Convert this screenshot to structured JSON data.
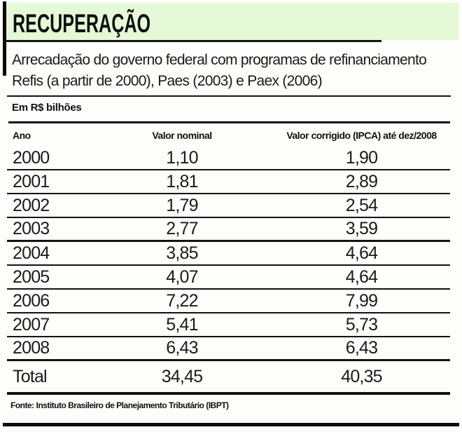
{
  "accent_color": "#e6f9d7",
  "line_color": "#131313",
  "header": {
    "title": "RECUPERAÇÃO"
  },
  "subtitle": "Arrecadação do governo federal com programas de refinanciamento Refis (a partir de 2000), Paes (2003) e Paex (2006)",
  "unit_label": "Em R$ bilhões",
  "table": {
    "columns": [
      "Ano",
      "Valor nominal",
      "Valor corrigido (IPCA) até dez/2008"
    ],
    "rows": [
      {
        "ano": "2000",
        "nominal": "1,10",
        "corrigido": "1,90",
        "divider": "normal"
      },
      {
        "ano": "2001",
        "nominal": "1,81",
        "corrigido": "2,89",
        "divider": "normal"
      },
      {
        "ano": "2002",
        "nominal": "1,79",
        "corrigido": "2,54",
        "divider": "normal"
      },
      {
        "ano": "2003",
        "nominal": "2,77",
        "corrigido": "3,59",
        "divider": "thick"
      },
      {
        "ano": "2004",
        "nominal": "3,85",
        "corrigido": "4,64",
        "divider": "normal"
      },
      {
        "ano": "2005",
        "nominal": "4,07",
        "corrigido": "4,64",
        "divider": "normal"
      },
      {
        "ano": "2006",
        "nominal": "7,22",
        "corrigido": "7,99",
        "divider": "normal"
      },
      {
        "ano": "2007",
        "nominal": "5,41",
        "corrigido": "5,73",
        "divider": "normal"
      },
      {
        "ano": "2008",
        "nominal": "6,43",
        "corrigido": "6,43",
        "divider": "thick"
      },
      {
        "ano": "Total",
        "nominal": "34,45",
        "corrigido": "40,35",
        "divider": "heavy"
      }
    ]
  },
  "source": "Fonte: Instituto Brasileiro de Planejamento Tributário (IBPT)",
  "chart_data": {
    "type": "table",
    "title": "RECUPERAÇÃO",
    "subtitle": "Arrecadação do governo federal com programas de refinanciamento Refis (a partir de 2000), Paes (2003) e Paex (2006)",
    "unit": "Em R$ bilhões",
    "columns": [
      "Ano",
      "Valor nominal",
      "Valor corrigido (IPCA) até dez/2008"
    ],
    "categories": [
      "2000",
      "2001",
      "2002",
      "2003",
      "2004",
      "2005",
      "2006",
      "2007",
      "2008",
      "Total"
    ],
    "series": [
      {
        "name": "Valor nominal",
        "values": [
          1.1,
          1.81,
          1.79,
          2.77,
          3.85,
          4.07,
          7.22,
          5.41,
          6.43,
          34.45
        ]
      },
      {
        "name": "Valor corrigido (IPCA) até dez/2008",
        "values": [
          1.9,
          2.89,
          2.54,
          3.59,
          4.64,
          4.64,
          7.99,
          5.73,
          6.43,
          40.35
        ]
      }
    ],
    "source": "Fonte: Instituto Brasileiro de Planejamento Tributário (IBPT)"
  }
}
